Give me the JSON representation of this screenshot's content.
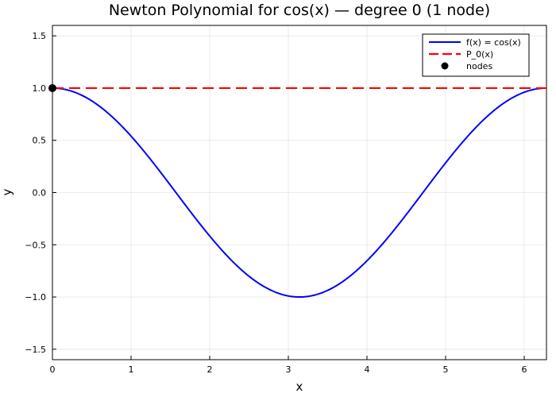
{
  "chart_data": {
    "type": "line",
    "title": "Newton Polynomial for cos(x) — degree 0  (1 node)",
    "xlabel": "x",
    "ylabel": "y",
    "xlim": [
      0,
      6.283
    ],
    "ylim": [
      -1.6,
      1.6
    ],
    "xticks": [
      0,
      1,
      2,
      3,
      4,
      5,
      6
    ],
    "xtick_labels": [
      "0",
      "1",
      "2",
      "3",
      "4",
      "5",
      "6"
    ],
    "yticks": [
      -1.5,
      -1.0,
      -0.5,
      0.0,
      0.5,
      1.0,
      1.5
    ],
    "ytick_labels": [
      "−1.5",
      "−1.0",
      "−0.5",
      "0.0",
      "0.5",
      "1.0",
      "1.5"
    ],
    "grid": true,
    "legend_position": "top-right",
    "series": [
      {
        "name": "f(x) = cos(x)",
        "style": "solid",
        "color": "#0000ff",
        "function": "cos(x)",
        "x": [
          0.0,
          0.3142,
          0.6283,
          0.9425,
          1.2566,
          1.5708,
          1.885,
          2.1991,
          2.5133,
          2.8274,
          3.1416,
          3.4558,
          3.7699,
          4.0841,
          4.3982,
          4.7124,
          5.0265,
          5.3407,
          5.6549,
          5.969,
          6.2832
        ],
        "y": [
          1.0,
          0.9511,
          0.809,
          0.5878,
          0.309,
          0.0,
          -0.309,
          -0.5878,
          -0.809,
          -0.9511,
          -1.0,
          -0.9511,
          -0.809,
          -0.5878,
          -0.309,
          0.0,
          0.309,
          0.5878,
          0.809,
          0.9511,
          1.0
        ]
      },
      {
        "name": "P_0(x)",
        "style": "dashed",
        "color": "#ff0000",
        "x": [
          0,
          6.283
        ],
        "y": [
          1.0,
          1.0
        ]
      },
      {
        "name": "nodes",
        "style": "marker",
        "color": "#000000",
        "x": [
          0
        ],
        "y": [
          1.0
        ]
      }
    ]
  }
}
